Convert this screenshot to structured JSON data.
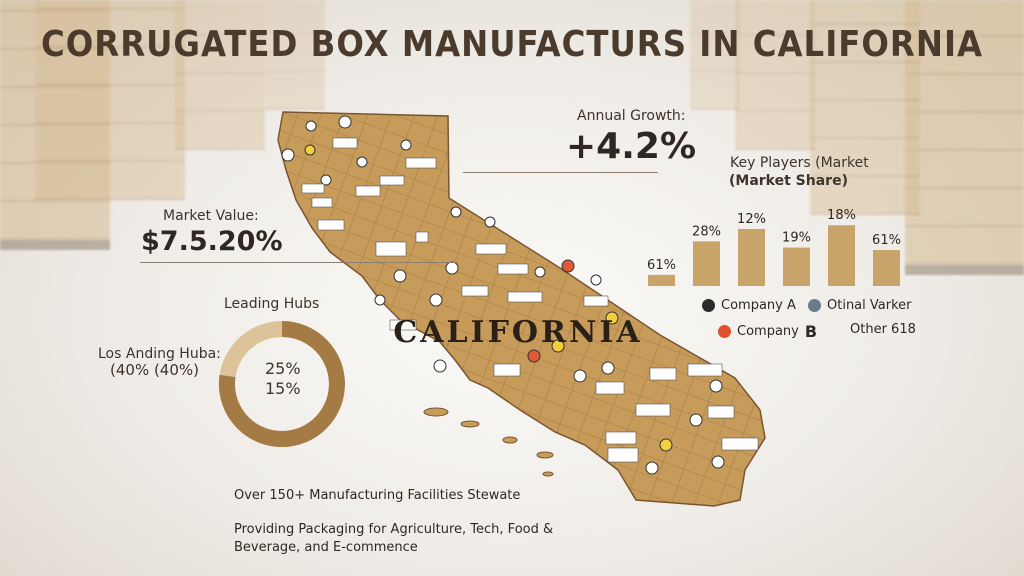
{
  "title": "CORRUGATED BOX MANUFACTURS IN CALIFORNIA",
  "annual_growth": {
    "label": "Annual Growth:",
    "value": "+4.2%"
  },
  "market_value": {
    "label": "Market Value:",
    "value": "$7.5.20%"
  },
  "leading_hubs": {
    "title": "Leading Hubs",
    "hub_label_line1": "Los Anding Huba:",
    "hub_label_line2": "(40% (40%)",
    "center_value_1": "25%",
    "center_value_2": "15%"
  },
  "map_label": "CALIFORNIA",
  "footer": {
    "line1": "Over 150+ Manufacturing Facilities Stewate",
    "line2": "Providing Packaging for Agriculture,   Tech, Food &",
    "line3": "Beverage, and E-commence"
  },
  "legend": {
    "company_a": "Company A",
    "otinal_varker": "Otinal Varker",
    "company_b": "Company",
    "company_b_mark": "B",
    "other": "Other 618"
  },
  "colors": {
    "bar": "#c9a46a",
    "map": "#c79b5a",
    "title": "#4a3b2c",
    "donut_dark": "#a47a45",
    "donut_light": "#dcc39a"
  },
  "chart_data": [
    {
      "type": "bar",
      "title": "Key Players (Market (Market Share)",
      "title_line1": "Key Players (Market",
      "title_line2": "(Market Share)",
      "categories": [
        "",
        "",
        "",
        "",
        "",
        ""
      ],
      "values": [
        61,
        28,
        12,
        19,
        18,
        61
      ],
      "data_labels": [
        "61%",
        "28%",
        "12%",
        "19%",
        "18%",
        "61%"
      ],
      "bar_heights_rel": [
        0.18,
        0.72,
        0.92,
        0.62,
        0.98,
        0.58
      ],
      "grid": false
    },
    {
      "type": "pie",
      "title": "Leading Hubs",
      "labels": [
        "25%",
        "15%"
      ],
      "values": [
        25,
        15
      ]
    }
  ]
}
